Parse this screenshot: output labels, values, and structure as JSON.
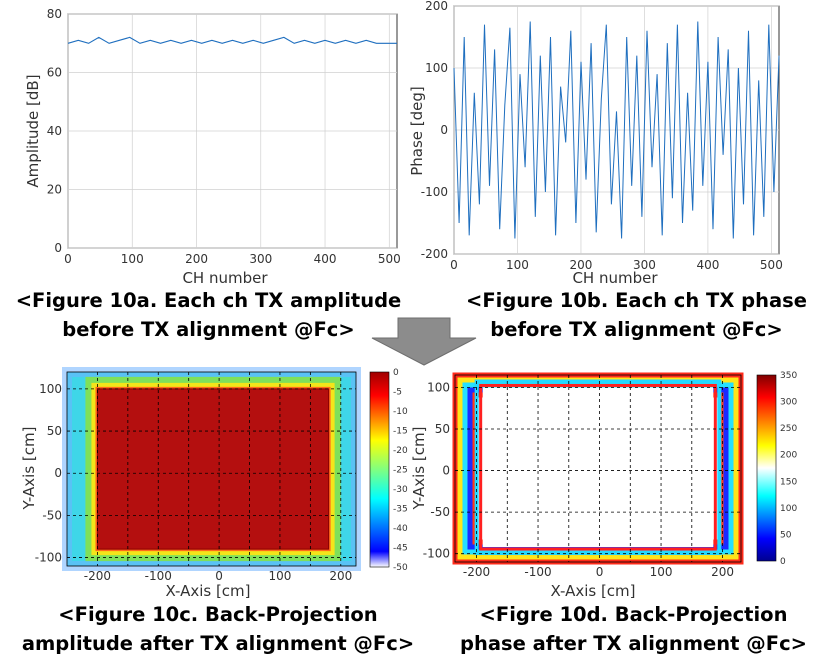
{
  "chart_data": [
    {
      "id": "fig10a",
      "type": "line",
      "xlabel": "CH number",
      "ylabel": "Amplitude [dB]",
      "xlim": [
        0,
        512
      ],
      "ylim": [
        0,
        80
      ],
      "xticks": [
        "0",
        "100",
        "200",
        "300",
        "400",
        "500"
      ],
      "yticks": [
        "0",
        "20",
        "40",
        "60",
        "80"
      ],
      "grid": true,
      "color": "#1f6fbf",
      "series": [
        {
          "x": [
            0,
            16,
            32,
            48,
            64,
            80,
            96,
            112,
            128,
            144,
            160,
            176,
            192,
            208,
            224,
            240,
            256,
            272,
            288,
            304,
            320,
            336,
            352,
            368,
            384,
            400,
            416,
            432,
            448,
            464,
            480,
            496,
            512
          ],
          "values": [
            70,
            71,
            70,
            72,
            70,
            71,
            72,
            70,
            71,
            70,
            71,
            70,
            71,
            70,
            71,
            70,
            71,
            70,
            71,
            70,
            71,
            72,
            70,
            71,
            70,
            71,
            70,
            71,
            70,
            71,
            70,
            70,
            70
          ]
        }
      ]
    },
    {
      "id": "fig10b",
      "type": "line",
      "xlabel": "CH number",
      "ylabel": "Phase [deg]",
      "xlim": [
        0,
        512
      ],
      "ylim": [
        -200,
        200
      ],
      "xticks": [
        "0",
        "100",
        "200",
        "300",
        "400",
        "500"
      ],
      "yticks": [
        "-200",
        "-100",
        "0",
        "100",
        "200"
      ],
      "grid": true,
      "color": "#1f6fbf",
      "series": [
        {
          "x": [
            0,
            8,
            16,
            24,
            32,
            40,
            48,
            56,
            64,
            72,
            80,
            88,
            96,
            104,
            112,
            120,
            128,
            136,
            144,
            152,
            160,
            168,
            176,
            184,
            192,
            200,
            208,
            216,
            224,
            232,
            240,
            248,
            256,
            264,
            272,
            280,
            288,
            296,
            304,
            312,
            320,
            328,
            336,
            344,
            352,
            360,
            368,
            376,
            384,
            392,
            400,
            408,
            416,
            424,
            432,
            440,
            448,
            456,
            464,
            472,
            480,
            488,
            496,
            504,
            512
          ],
          "values": [
            100,
            -150,
            150,
            -170,
            60,
            -120,
            170,
            -90,
            130,
            -160,
            40,
            165,
            -175,
            90,
            -60,
            175,
            -140,
            120,
            -100,
            150,
            -170,
            70,
            -20,
            160,
            -150,
            110,
            -80,
            140,
            -165,
            50,
            170,
            -120,
            30,
            -175,
            150,
            -90,
            120,
            -140,
            160,
            -60,
            90,
            -170,
            140,
            -110,
            170,
            -150,
            60,
            -130,
            175,
            -90,
            110,
            -160,
            150,
            -40,
            130,
            -175,
            100,
            -120,
            160,
            -170,
            80,
            -140,
            170,
            -100,
            120
          ]
        }
      ]
    },
    {
      "id": "fig10c",
      "type": "heatmap",
      "xlabel": "X-Axis [cm]",
      "ylabel": "Y-Axis [cm]",
      "xlim": [
        -250,
        225
      ],
      "ylim": [
        -110,
        120
      ],
      "xticks": [
        "-200",
        "-100",
        "0",
        "100",
        "200"
      ],
      "yticks": [
        "-100",
        "-50",
        "0",
        "50",
        "100"
      ],
      "grid": true,
      "aperture": {
        "xmin": -200,
        "xmax": 180,
        "ymin": -90,
        "ymax": 100,
        "inside_level": 0
      },
      "colorbar": {
        "min": -50,
        "max": 0,
        "ticks": [
          "0",
          "-5",
          "-10",
          "-15",
          "-20",
          "-25",
          "-30",
          "-35",
          "-40",
          "-45",
          "-50"
        ]
      }
    },
    {
      "id": "fig10d",
      "type": "heatmap",
      "xlabel": "X-Axis [cm]",
      "ylabel": "Y-Axis [cm]",
      "xlim": [
        -235,
        230
      ],
      "ylim": [
        -110,
        115
      ],
      "xticks": [
        "-200",
        "-100",
        "0",
        "100",
        "200"
      ],
      "yticks": [
        "-100",
        "-50",
        "0",
        "50",
        "100"
      ],
      "grid": true,
      "aperture": {
        "xmin": -190,
        "xmax": 185,
        "ymin": -92,
        "ymax": 100,
        "inside_level": 180
      },
      "colorbar": {
        "min": 0,
        "max": 350,
        "ticks": [
          "350",
          "300",
          "250",
          "200",
          "150",
          "100",
          "50",
          "0"
        ]
      }
    }
  ],
  "captions": {
    "fig10a_line1": "<Figure 10a. Each ch TX amplitude",
    "fig10a_line2": "before TX alignment @Fc>",
    "fig10b_line1": "<Figure 10b. Each ch TX phase",
    "fig10b_line2": "before TX alignment @Fc>",
    "fig10c_line1": "<Figure 10c. Back-Projection",
    "fig10c_line2": "amplitude after TX alignment @Fc>",
    "fig10d_line1": "<Figre 10d. Back-Projection",
    "fig10d_line2": "phase after TX alignment @Fc>"
  },
  "arrow": {
    "icon": "down-arrow-icon",
    "color": "#8c8c8c"
  }
}
